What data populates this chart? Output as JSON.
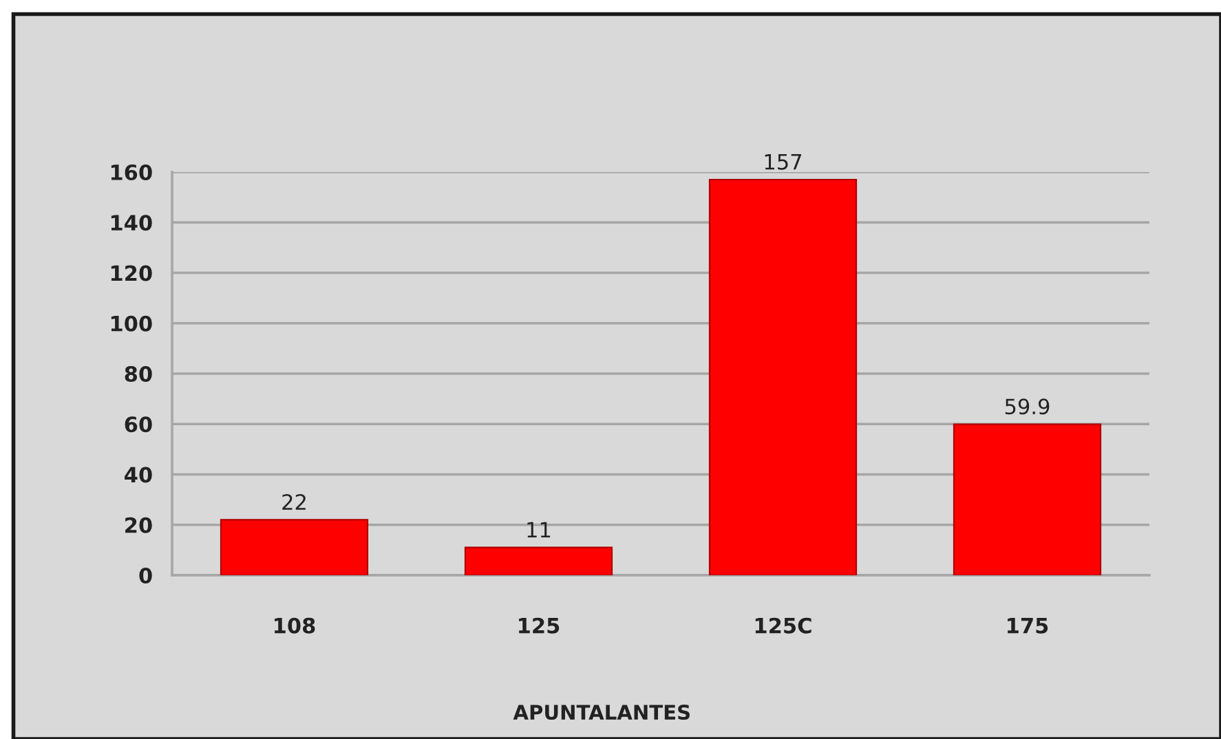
{
  "chart_data": {
    "type": "bar",
    "xlabel": "APUNTALANTES",
    "categories": [
      "108",
      "125",
      "125C",
      "175"
    ],
    "values": [
      22,
      11,
      157,
      59.9
    ],
    "color": "#ff0000",
    "ylim": [
      0,
      160
    ],
    "yticks": [
      0,
      20,
      40,
      60,
      80,
      100,
      120,
      140,
      160
    ],
    "grid": "y",
    "data_labels": true,
    "legend": false
  }
}
